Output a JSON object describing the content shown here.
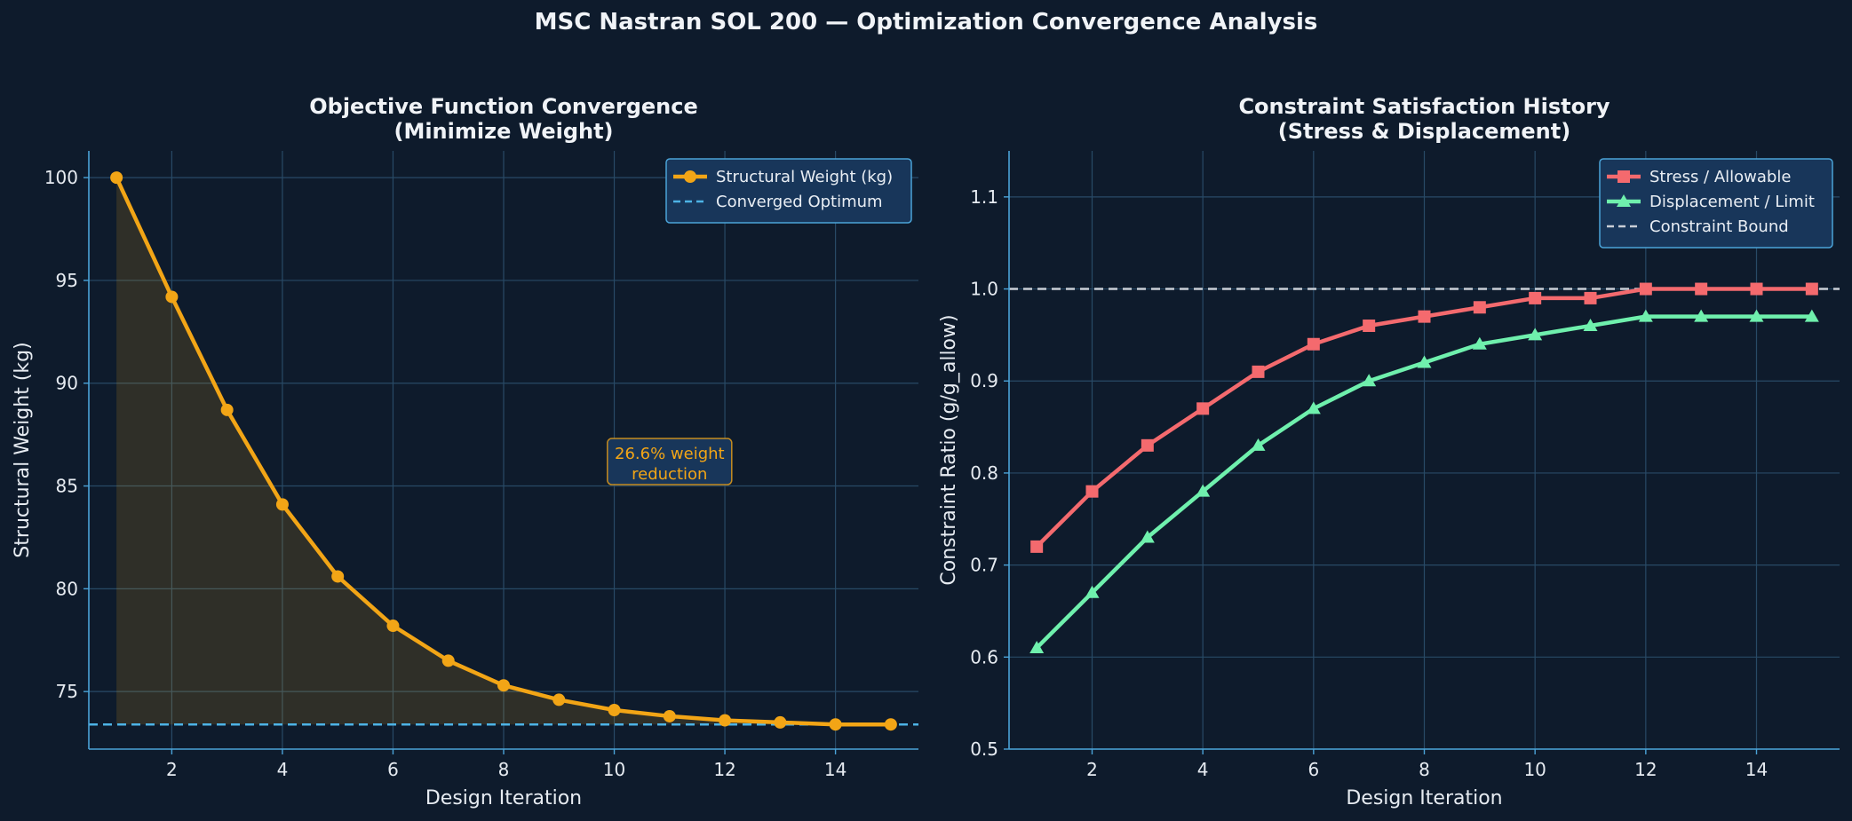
{
  "figure": {
    "title": "MSC Nastran SOL 200 — Optimization Convergence Analysis"
  },
  "colors": {
    "background": "#0e1b2c",
    "grid": "#284a66",
    "axes": "#4aa3d8",
    "weight": "#f2a516",
    "optimum": "#4db3e6",
    "stress": "#f46a6e",
    "displacement": "#6ff0ad",
    "bound": "#c9ced6",
    "legend_bg": "#18365a",
    "legend_border": "#4aa3d8"
  },
  "chart_data": [
    {
      "type": "line",
      "title": "Objective Function Convergence",
      "subtitle": "(Minimize Weight)",
      "xlabel": "Design Iteration",
      "ylabel": "Structural Weight (kg)",
      "xlim": [
        0.5,
        15.5
      ],
      "ylim": [
        72.2,
        101.3
      ],
      "xticks": [
        2,
        4,
        6,
        8,
        10,
        12,
        14
      ],
      "yticks": [
        75,
        80,
        85,
        90,
        95,
        100
      ],
      "grid": true,
      "legend_position": "top-right",
      "x": [
        1,
        2,
        3,
        4,
        5,
        6,
        7,
        8,
        9,
        10,
        11,
        12,
        13,
        14,
        15
      ],
      "series": [
        {
          "name": "Structural Weight (kg)",
          "color": "#f2a516",
          "marker": "circle",
          "fill_under": true,
          "values": [
            100.0,
            94.2,
            88.7,
            84.1,
            80.6,
            78.2,
            76.5,
            75.3,
            74.6,
            74.1,
            73.8,
            73.6,
            73.5,
            73.4,
            73.4
          ]
        }
      ],
      "reference_lines": [
        {
          "name": "Converged Optimum",
          "y": 73.4,
          "style": "dashed",
          "color": "#4db3e6"
        }
      ],
      "annotation": {
        "lines": [
          "26.6% weight",
          "reduction"
        ],
        "x": 11,
        "y": 85.8,
        "color": "#f2a516"
      }
    },
    {
      "type": "line",
      "title": "Constraint Satisfaction History",
      "subtitle": "(Stress & Displacement)",
      "xlabel": "Design Iteration",
      "ylabel": "Constraint Ratio (g/g_allow)",
      "xlim": [
        0.5,
        15.5
      ],
      "ylim": [
        0.5,
        1.15
      ],
      "xticks": [
        2,
        4,
        6,
        8,
        10,
        12,
        14
      ],
      "yticks": [
        0.5,
        0.6,
        0.7,
        0.8,
        0.9,
        1.0,
        1.1
      ],
      "grid": true,
      "legend_position": "top-right",
      "x": [
        1,
        2,
        3,
        4,
        5,
        6,
        7,
        8,
        9,
        10,
        11,
        12,
        13,
        14,
        15
      ],
      "series": [
        {
          "name": "Stress / Allowable",
          "color": "#f46a6e",
          "marker": "square",
          "values": [
            0.72,
            0.78,
            0.83,
            0.87,
            0.91,
            0.94,
            0.96,
            0.97,
            0.98,
            0.99,
            0.99,
            1.0,
            1.0,
            1.0,
            1.0
          ]
        },
        {
          "name": "Displacement / Limit",
          "color": "#6ff0ad",
          "marker": "triangle",
          "values": [
            0.61,
            0.67,
            0.73,
            0.78,
            0.83,
            0.87,
            0.9,
            0.92,
            0.94,
            0.95,
            0.96,
            0.97,
            0.97,
            0.97,
            0.97
          ]
        }
      ],
      "reference_lines": [
        {
          "name": "Constraint Bound",
          "y": 1.0,
          "style": "dashed",
          "color": "#c9ced6"
        }
      ]
    }
  ]
}
